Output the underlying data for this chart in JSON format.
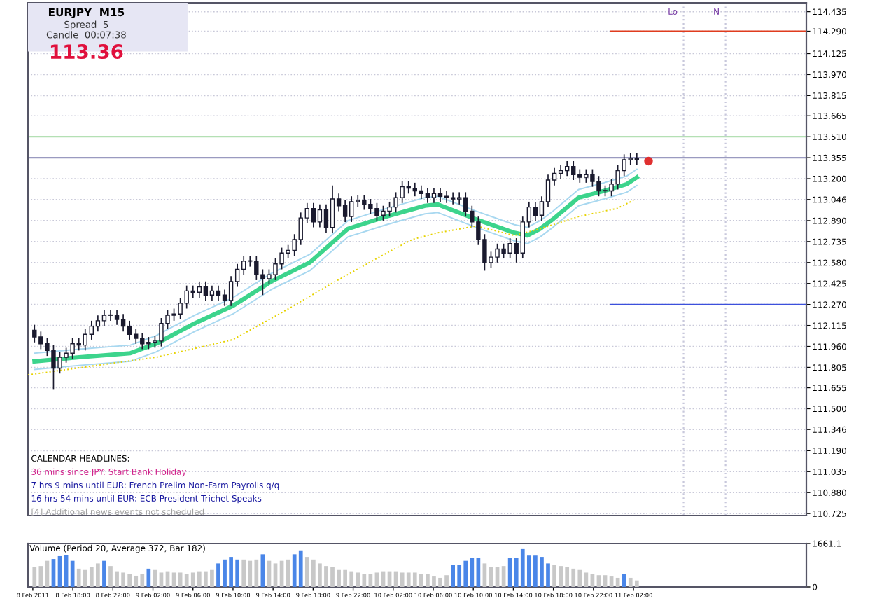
{
  "chart_data": [
    {
      "type": "candlestick",
      "x": [
        "2011-02-08T14:10",
        "2011-02-08T14:48",
        "2011-02-08T15:26",
        "2011-02-08T16:04",
        "2011-02-08T16:42",
        "2011-02-08T17:20",
        "2011-02-08T17:58",
        "2011-02-08T18:36",
        "2011-02-08T19:14",
        "2011-02-08T19:52",
        "2011-02-08T20:30",
        "2011-02-08T21:08",
        "2011-02-08T21:46",
        "2011-02-08T22:24",
        "2011-02-08T23:02",
        "2011-02-08T23:40",
        "2011-02-09T00:18",
        "2011-02-09T00:56",
        "2011-02-09T01:34",
        "2011-02-09T02:12",
        "2011-02-09T02:50",
        "2011-02-09T03:28",
        "2011-02-09T04:06",
        "2011-02-09T04:44",
        "2011-02-09T05:22",
        "2011-02-09T06:00",
        "2011-02-09T06:38",
        "2011-02-09T07:16",
        "2011-02-09T07:54",
        "2011-02-09T08:32",
        "2011-02-09T09:10",
        "2011-02-09T09:48",
        "2011-02-09T10:26",
        "2011-02-09T11:04",
        "2011-02-09T11:42",
        "2011-02-09T12:20",
        "2011-02-09T12:58",
        "2011-02-09T13:36",
        "2011-02-09T14:14",
        "2011-02-09T14:52",
        "2011-02-09T15:30",
        "2011-02-09T16:08",
        "2011-02-09T16:46",
        "2011-02-09T17:24",
        "2011-02-09T18:02",
        "2011-02-09T18:40",
        "2011-02-09T19:18",
        "2011-02-09T19:56",
        "2011-02-09T20:34",
        "2011-02-09T21:12",
        "2011-02-09T21:50",
        "2011-02-09T22:28",
        "2011-02-09T23:06",
        "2011-02-09T23:44",
        "2011-02-10T00:22",
        "2011-02-10T01:00",
        "2011-02-10T01:38",
        "2011-02-10T02:16",
        "2011-02-10T02:54",
        "2011-02-10T03:32",
        "2011-02-10T04:10",
        "2011-02-10T04:48",
        "2011-02-10T05:26",
        "2011-02-10T06:04",
        "2011-02-10T06:42",
        "2011-02-10T07:20",
        "2011-02-10T07:58",
        "2011-02-10T08:36",
        "2011-02-10T09:14",
        "2011-02-10T09:52",
        "2011-02-10T10:30",
        "2011-02-10T11:08",
        "2011-02-10T11:46",
        "2011-02-10T12:24",
        "2011-02-10T13:02",
        "2011-02-10T13:40",
        "2011-02-10T14:18",
        "2011-02-10T14:56",
        "2011-02-10T15:34",
        "2011-02-10T16:12",
        "2011-02-10T16:50",
        "2011-02-10T17:28",
        "2011-02-10T18:06",
        "2011-02-10T18:44",
        "2011-02-10T19:22",
        "2011-02-10T20:00",
        "2011-02-10T20:38",
        "2011-02-10T21:16",
        "2011-02-10T21:54",
        "2011-02-10T22:32",
        "2011-02-10T23:10",
        "2011-02-10T23:48",
        "2011-02-11T00:26",
        "2011-02-11T01:04",
        "2011-02-11T01:42",
        "2011-02-11T02:20"
      ],
      "ohlc": [
        [
          112.08,
          112.12,
          111.99,
          112.03
        ],
        [
          112.03,
          112.07,
          111.94,
          111.98
        ],
        [
          111.98,
          112.02,
          111.89,
          111.93
        ],
        [
          111.93,
          111.97,
          111.64,
          111.8
        ],
        [
          111.8,
          111.92,
          111.76,
          111.88
        ],
        [
          111.88,
          111.95,
          111.84,
          111.91
        ],
        [
          111.91,
          112.02,
          111.87,
          111.98
        ],
        [
          111.98,
          112.02,
          111.93,
          111.97
        ],
        [
          111.97,
          112.09,
          111.93,
          112.05
        ],
        [
          112.05,
          112.15,
          112.01,
          112.11
        ],
        [
          112.11,
          112.19,
          112.07,
          112.15
        ],
        [
          112.15,
          112.23,
          112.11,
          112.19
        ],
        [
          112.19,
          112.23,
          112.15,
          112.19
        ],
        [
          112.19,
          112.23,
          112.12,
          112.16
        ],
        [
          112.16,
          112.2,
          112.07,
          112.11
        ],
        [
          112.11,
          112.15,
          112.01,
          112.05
        ],
        [
          112.05,
          112.09,
          111.98,
          112.02
        ],
        [
          112.02,
          112.06,
          111.94,
          111.98
        ],
        [
          111.98,
          112.03,
          111.94,
          111.99
        ],
        [
          111.99,
          112.04,
          111.95,
          112.0
        ],
        [
          112.0,
          112.17,
          111.96,
          112.13
        ],
        [
          112.13,
          112.23,
          112.09,
          112.19
        ],
        [
          112.19,
          112.24,
          112.15,
          112.2
        ],
        [
          112.2,
          112.32,
          112.16,
          112.28
        ],
        [
          112.28,
          112.41,
          112.24,
          112.37
        ],
        [
          112.37,
          112.41,
          112.32,
          112.36
        ],
        [
          112.36,
          112.44,
          112.32,
          112.4
        ],
        [
          112.4,
          112.44,
          112.3,
          112.34
        ],
        [
          112.34,
          112.41,
          112.3,
          112.37
        ],
        [
          112.37,
          112.41,
          112.3,
          112.34
        ],
        [
          112.34,
          112.38,
          112.26,
          112.3
        ],
        [
          112.3,
          112.48,
          112.26,
          112.44
        ],
        [
          112.44,
          112.57,
          112.4,
          112.53
        ],
        [
          112.53,
          112.63,
          112.49,
          112.59
        ],
        [
          112.59,
          112.63,
          112.55,
          112.59
        ],
        [
          112.59,
          112.63,
          112.45,
          112.49
        ],
        [
          112.49,
          112.53,
          112.34,
          112.46
        ],
        [
          112.46,
          112.53,
          112.42,
          112.49
        ],
        [
          112.49,
          112.61,
          112.45,
          112.57
        ],
        [
          112.57,
          112.69,
          112.53,
          112.65
        ],
        [
          112.65,
          112.71,
          112.61,
          112.67
        ],
        [
          112.67,
          112.79,
          112.63,
          112.75
        ],
        [
          112.75,
          112.95,
          112.71,
          112.91
        ],
        [
          112.91,
          113.02,
          112.87,
          112.98
        ],
        [
          112.98,
          113.02,
          112.84,
          112.88
        ],
        [
          112.88,
          113.01,
          112.84,
          112.97
        ],
        [
          112.97,
          113.01,
          112.8,
          112.84
        ],
        [
          112.84,
          113.15,
          112.8,
          113.05
        ],
        [
          113.05,
          113.09,
          112.96,
          113.0
        ],
        [
          113.0,
          113.04,
          112.88,
          112.92
        ],
        [
          112.92,
          113.07,
          112.88,
          113.03
        ],
        [
          113.03,
          113.08,
          112.99,
          113.04
        ],
        [
          113.04,
          113.08,
          112.97,
          113.01
        ],
        [
          113.01,
          113.05,
          112.94,
          112.98
        ],
        [
          112.98,
          113.02,
          112.89,
          112.93
        ],
        [
          112.93,
          113.0,
          112.89,
          112.96
        ],
        [
          112.96,
          113.03,
          112.92,
          112.99
        ],
        [
          112.99,
          113.1,
          112.95,
          113.06
        ],
        [
          113.06,
          113.18,
          113.02,
          113.14
        ],
        [
          113.14,
          113.18,
          113.09,
          113.13
        ],
        [
          113.13,
          113.17,
          113.07,
          113.11
        ],
        [
          113.11,
          113.15,
          113.05,
          113.09
        ],
        [
          113.09,
          113.13,
          113.02,
          113.06
        ],
        [
          113.06,
          113.13,
          113.02,
          113.09
        ],
        [
          113.09,
          113.13,
          113.03,
          113.07
        ],
        [
          113.07,
          113.11,
          113.02,
          113.06
        ],
        [
          113.06,
          113.1,
          113.01,
          113.05
        ],
        [
          113.05,
          113.1,
          113.01,
          113.06
        ],
        [
          113.06,
          113.1,
          112.92,
          112.96
        ],
        [
          112.96,
          113.0,
          112.84,
          112.88
        ],
        [
          112.88,
          112.92,
          112.71,
          112.75
        ],
        [
          112.75,
          112.79,
          112.52,
          112.58
        ],
        [
          112.58,
          112.66,
          112.54,
          112.62
        ],
        [
          112.62,
          112.72,
          112.58,
          112.68
        ],
        [
          112.68,
          112.72,
          112.61,
          112.65
        ],
        [
          112.65,
          112.76,
          112.61,
          112.72
        ],
        [
          112.72,
          112.76,
          112.58,
          112.65
        ],
        [
          112.65,
          112.92,
          112.61,
          112.88
        ],
        [
          112.88,
          113.03,
          112.84,
          112.99
        ],
        [
          112.99,
          113.03,
          112.89,
          112.93
        ],
        [
          112.93,
          113.07,
          112.89,
          113.03
        ],
        [
          113.03,
          113.23,
          112.99,
          113.19
        ],
        [
          113.19,
          113.28,
          113.15,
          113.24
        ],
        [
          113.24,
          113.3,
          113.2,
          113.26
        ],
        [
          113.26,
          113.33,
          113.22,
          113.29
        ],
        [
          113.29,
          113.33,
          113.19,
          113.23
        ],
        [
          113.23,
          113.27,
          113.17,
          113.21
        ],
        [
          113.21,
          113.27,
          113.17,
          113.23
        ],
        [
          113.23,
          113.27,
          113.14,
          113.18
        ],
        [
          113.18,
          113.22,
          113.07,
          113.11
        ],
        [
          113.11,
          113.15,
          113.07,
          113.11
        ],
        [
          113.11,
          113.2,
          113.07,
          113.16
        ],
        [
          113.16,
          113.3,
          113.12,
          113.26
        ],
        [
          113.26,
          113.38,
          113.22,
          113.34
        ],
        [
          113.34,
          113.39,
          113.3,
          113.35
        ],
        [
          113.35,
          113.39,
          113.3,
          113.34
        ]
      ],
      "color": "#1a1a2e",
      "series": [
        {
          "type": "line",
          "color": "#a8d8f0",
          "x": [
            "2011-02-08T14:10",
            "2011-02-08T18:38",
            "2011-02-08T23:45",
            "2011-02-09T02:19",
            "2011-02-09T06:09",
            "2011-02-09T09:59",
            "2011-02-09T13:49",
            "2011-02-09T17:40",
            "2011-02-09T21:29",
            "2011-02-10T01:20",
            "2011-02-10T05:10",
            "2011-02-10T06:27",
            "2011-02-10T10:17",
            "2011-02-10T14:07",
            "2011-02-10T15:24",
            "2011-02-10T16:41",
            "2011-02-10T17:57",
            "2011-02-10T20:31",
            "2011-02-10T23:04",
            "2011-02-11T01:20",
            "2011-02-11T02:20"
          ],
          "values": [
            111.91,
            111.94,
            111.97,
            112.04,
            112.19,
            112.32,
            112.5,
            112.64,
            112.89,
            112.98,
            113.06,
            113.07,
            112.96,
            112.86,
            112.84,
            112.89,
            112.96,
            113.12,
            113.17,
            113.22,
            113.27
          ]
        },
        {
          "type": "line",
          "color": "#a8d8f0",
          "x": [
            "2011-02-08T14:10",
            "2011-02-08T18:38",
            "2011-02-08T23:45",
            "2011-02-09T02:19",
            "2011-02-09T06:09",
            "2011-02-09T09:59",
            "2011-02-09T13:49",
            "2011-02-09T17:40",
            "2011-02-09T21:29",
            "2011-02-10T01:20",
            "2011-02-10T05:10",
            "2011-02-10T06:27",
            "2011-02-10T10:17",
            "2011-02-10T14:07",
            "2011-02-10T15:24",
            "2011-02-10T16:41",
            "2011-02-10T17:57",
            "2011-02-10T20:31",
            "2011-02-10T23:04",
            "2011-02-11T01:20",
            "2011-02-11T02:20"
          ],
          "values": [
            111.79,
            111.82,
            111.85,
            111.92,
            112.07,
            112.2,
            112.38,
            112.52,
            112.77,
            112.86,
            112.94,
            112.95,
            112.84,
            112.74,
            112.72,
            112.77,
            112.84,
            113.0,
            113.05,
            113.1,
            113.15
          ]
        },
        {
          "type": "line",
          "color": "#3cd48c",
          "x": [
            "2011-02-08T14:10",
            "2011-02-08T18:38",
            "2011-02-08T23:45",
            "2011-02-09T02:19",
            "2011-02-09T06:09",
            "2011-02-09T09:59",
            "2011-02-09T13:49",
            "2011-02-09T17:40",
            "2011-02-09T21:29",
            "2011-02-10T01:20",
            "2011-02-10T05:10",
            "2011-02-10T06:27",
            "2011-02-10T10:17",
            "2011-02-10T14:07",
            "2011-02-10T15:24",
            "2011-02-10T16:41",
            "2011-02-10T17:57",
            "2011-02-10T20:31",
            "2011-02-10T23:04",
            "2011-02-11T01:20",
            "2011-02-11T02:20"
          ],
          "values": [
            111.85,
            111.88,
            111.91,
            111.98,
            112.13,
            112.26,
            112.44,
            112.58,
            112.83,
            112.92,
            113.0,
            113.01,
            112.9,
            112.8,
            112.78,
            112.83,
            112.9,
            113.06,
            113.11,
            113.16,
            113.21
          ]
        },
        {
          "type": "line",
          "color": "#e6d200",
          "line_style": "dotted",
          "x": [
            "2011-02-08T13:31",
            "2011-02-09T02:19",
            "2011-02-09T09:59",
            "2011-02-09T15:06",
            "2011-02-09T20:13",
            "2011-02-10T01:20",
            "2011-02-10T03:53",
            "2011-02-10T06:27",
            "2011-02-10T10:17",
            "2011-02-10T14:07",
            "2011-02-10T16:41",
            "2011-02-10T20:31",
            "2011-02-11T00:21",
            "2011-02-11T02:00"
          ],
          "values": [
            111.75,
            111.88,
            112.01,
            112.22,
            112.44,
            112.65,
            112.75,
            112.8,
            112.85,
            112.78,
            112.83,
            112.92,
            112.98,
            113.04
          ]
        },
        {
          "type": "line",
          "color": "#e03c1e",
          "x": [
            "2011-02-10T23:45",
            "2011-02-11T19:16"
          ],
          "values": [
            114.29,
            114.29
          ]
        },
        {
          "type": "line",
          "color": "#3c50dc",
          "x": [
            "2011-02-10T23:45",
            "2011-02-11T19:16"
          ],
          "values": [
            112.27,
            112.27
          ]
        },
        {
          "type": "scatter",
          "color": "#e03030",
          "x": [
            "2011-02-11T03:30"
          ],
          "values": [
            113.33
          ]
        }
      ],
      "xlim": [
        "2011-02-08T13:31",
        "2011-02-11T19:16"
      ],
      "ylim": [
        110.71,
        114.5
      ],
      "yticks": [
        {
          "value": 114.435,
          "label": "114.435"
        },
        {
          "value": 114.29,
          "label": "114.290"
        },
        114.125,
        {
          "value": 113.97,
          "label": "113.970"
        },
        113.815,
        113.665,
        {
          "value": 113.51,
          "label": "113.510"
        },
        113.355,
        {
          "value": 113.2,
          "label": "113.200"
        },
        113.046,
        {
          "value": 112.89,
          "label": "112.890"
        },
        112.735,
        {
          "value": 112.58,
          "label": "112.580"
        },
        112.425,
        {
          "value": 112.27,
          "label": "112.270"
        },
        112.115,
        {
          "value": 111.96,
          "label": "111.960"
        },
        111.805,
        111.655,
        {
          "value": 111.5,
          "label": "111.500"
        },
        111.346,
        {
          "value": 111.19,
          "label": "111.190"
        },
        111.035,
        {
          "value": 110.88,
          "label": "110.880"
        },
        110.725
      ],
      "tick_labels": "y",
      "grid": "y",
      "ref_lines": [
        {
          "axis": "y",
          "value": 113.51,
          "color": "#b4e0b4"
        },
        {
          "axis": "y",
          "value": 113.355,
          "color": "#9a9ac0"
        },
        {
          "axis": "x",
          "value": "2011-02-11T07:00",
          "label": "Lo",
          "color": "#c8c8dc",
          "line_style": "dotted"
        },
        {
          "axis": "x",
          "value": "2011-02-11T11:12",
          "label": "N",
          "color": "#c8c8dc",
          "line_style": "dotted"
        }
      ],
      "annotations": [
        "EURJPY  M15",
        "Spread  5",
        "Candle  00:07:38",
        "113.36",
        "CALENDAR HEADLINES:",
        "36 mins since JPY: Start Bank Holiday",
        "7 hrs 9 mins until EUR: French Prelim Non-Farm Payrolls q/q",
        "16 hrs 54 mins until EUR: ECB President Trichet Speaks",
        "[4] Additional news events not scheduled"
      ]
    },
    {
      "type": "bar",
      "title": "Volume (Period 20, Average 372, Bar 182)",
      "x": [
        "2011-02-08T14:10",
        "2011-02-08T14:48",
        "2011-02-08T15:26",
        "2011-02-08T16:04",
        "2011-02-08T16:42",
        "2011-02-08T17:20",
        "2011-02-08T17:58",
        "2011-02-08T18:36",
        "2011-02-08T19:14",
        "2011-02-08T19:52",
        "2011-02-08T20:30",
        "2011-02-08T21:08",
        "2011-02-08T21:46",
        "2011-02-08T22:24",
        "2011-02-08T23:02",
        "2011-02-08T23:40",
        "2011-02-09T00:18",
        "2011-02-09T00:56",
        "2011-02-09T01:34",
        "2011-02-09T02:12",
        "2011-02-09T02:50",
        "2011-02-09T03:28",
        "2011-02-09T04:06",
        "2011-02-09T04:44",
        "2011-02-09T05:22",
        "2011-02-09T06:00",
        "2011-02-09T06:38",
        "2011-02-09T07:16",
        "2011-02-09T07:54",
        "2011-02-09T08:32",
        "2011-02-09T09:10",
        "2011-02-09T09:48",
        "2011-02-09T10:26",
        "2011-02-09T11:04",
        "2011-02-09T11:42",
        "2011-02-09T12:20",
        "2011-02-09T12:58",
        "2011-02-09T13:36",
        "2011-02-09T14:14",
        "2011-02-09T14:52",
        "2011-02-09T15:30",
        "2011-02-09T16:08",
        "2011-02-09T16:46",
        "2011-02-09T17:24",
        "2011-02-09T18:02",
        "2011-02-09T18:40",
        "2011-02-09T19:18",
        "2011-02-09T19:56",
        "2011-02-09T20:34",
        "2011-02-09T21:12",
        "2011-02-09T21:50",
        "2011-02-09T22:28",
        "2011-02-09T23:06",
        "2011-02-09T23:44",
        "2011-02-10T00:22",
        "2011-02-10T01:00",
        "2011-02-10T01:38",
        "2011-02-10T02:16",
        "2011-02-10T02:54",
        "2011-02-10T03:32",
        "2011-02-10T04:10",
        "2011-02-10T04:48",
        "2011-02-10T05:26",
        "2011-02-10T06:04",
        "2011-02-10T06:42",
        "2011-02-10T07:20",
        "2011-02-10T07:58",
        "2011-02-10T08:36",
        "2011-02-10T09:14",
        "2011-02-10T09:52",
        "2011-02-10T10:30",
        "2011-02-10T11:08",
        "2011-02-10T11:46",
        "2011-02-10T12:24",
        "2011-02-10T13:02",
        "2011-02-10T13:40",
        "2011-02-10T14:18",
        "2011-02-10T14:56",
        "2011-02-10T15:34",
        "2011-02-10T16:12",
        "2011-02-10T16:50",
        "2011-02-10T17:28",
        "2011-02-10T18:06",
        "2011-02-10T18:44",
        "2011-02-10T19:22",
        "2011-02-10T20:00",
        "2011-02-10T20:38",
        "2011-02-10T21:16",
        "2011-02-10T21:54",
        "2011-02-10T22:32",
        "2011-02-10T23:10",
        "2011-02-10T23:48",
        "2011-02-11T00:26",
        "2011-02-11T01:04",
        "2011-02-11T01:42",
        "2011-02-11T02:20"
      ],
      "values": [
        750,
        800,
        1000,
        1070,
        1180,
        1230,
        1000,
        700,
        650,
        750,
        900,
        1000,
        800,
        600,
        550,
        500,
        430,
        500,
        700,
        650,
        550,
        600,
        550,
        550,
        500,
        550,
        600,
        600,
        650,
        900,
        1050,
        1150,
        1050,
        1050,
        1000,
        1050,
        1250,
        1000,
        900,
        1000,
        1050,
        1250,
        1400,
        1150,
        1050,
        900,
        800,
        750,
        650,
        650,
        600,
        550,
        500,
        500,
        550,
        600,
        600,
        600,
        550,
        550,
        550,
        500,
        500,
        400,
        350,
        450,
        850,
        850,
        1000,
        1100,
        1100,
        900,
        750,
        750,
        800,
        1100,
        1100,
        1450,
        1200,
        1200,
        1150,
        900,
        850,
        800,
        750,
        700,
        650,
        550,
        500,
        450,
        450,
        400,
        350,
        500,
        350,
        250
      ],
      "colors": [
        "#c8c8c8",
        "#c8c8c8",
        "#c8c8c8",
        "#4a86e8",
        "#4a86e8",
        "#4a86e8",
        "#4a86e8",
        "#c8c8c8",
        "#c8c8c8",
        "#c8c8c8",
        "#c8c8c8",
        "#4a86e8",
        "#c8c8c8",
        "#c8c8c8",
        "#c8c8c8",
        "#c8c8c8",
        "#c8c8c8",
        "#c8c8c8",
        "#4a86e8",
        "#c8c8c8",
        "#c8c8c8",
        "#c8c8c8",
        "#c8c8c8",
        "#c8c8c8",
        "#c8c8c8",
        "#c8c8c8",
        "#c8c8c8",
        "#c8c8c8",
        "#c8c8c8",
        "#4a86e8",
        "#4a86e8",
        "#4a86e8",
        "#4a86e8",
        "#c8c8c8",
        "#c8c8c8",
        "#c8c8c8",
        "#4a86e8",
        "#c8c8c8",
        "#c8c8c8",
        "#c8c8c8",
        "#c8c8c8",
        "#4a86e8",
        "#4a86e8",
        "#c8c8c8",
        "#c8c8c8",
        "#c8c8c8",
        "#c8c8c8",
        "#c8c8c8",
        "#c8c8c8",
        "#c8c8c8",
        "#c8c8c8",
        "#c8c8c8",
        "#c8c8c8",
        "#c8c8c8",
        "#c8c8c8",
        "#c8c8c8",
        "#c8c8c8",
        "#c8c8c8",
        "#c8c8c8",
        "#c8c8c8",
        "#c8c8c8",
        "#c8c8c8",
        "#c8c8c8",
        "#c8c8c8",
        "#c8c8c8",
        "#c8c8c8",
        "#4a86e8",
        "#4a86e8",
        "#4a86e8",
        "#4a86e8",
        "#4a86e8",
        "#c8c8c8",
        "#c8c8c8",
        "#c8c8c8",
        "#c8c8c8",
        "#4a86e8",
        "#4a86e8",
        "#4a86e8",
        "#4a86e8",
        "#4a86e8",
        "#4a86e8",
        "#4a86e8",
        "#c8c8c8",
        "#c8c8c8",
        "#c8c8c8",
        "#c8c8c8",
        "#c8c8c8",
        "#c8c8c8",
        "#c8c8c8",
        "#c8c8c8",
        "#c8c8c8",
        "#c8c8c8",
        "#c8c8c8",
        "#4a86e8",
        "#c8c8c8",
        "#c8c8c8"
      ],
      "xlim": [
        "2011-02-08T13:31",
        "2011-02-11T19:16"
      ],
      "ylim": [
        0,
        1661.1
      ],
      "yticks": [
        0,
        1661.1
      ],
      "xticks": [
        {
          "value": "2011-02-08T14:00",
          "label": "8 Feb 2011"
        },
        {
          "value": "2011-02-08T18:00",
          "label": "8 Feb 18:00"
        },
        {
          "value": "2011-02-08T22:00",
          "label": "8 Feb 22:00"
        },
        {
          "value": "2011-02-09T02:00",
          "label": "9 Feb 02:00"
        },
        {
          "value": "2011-02-09T06:00",
          "label": "9 Feb 06:00"
        },
        {
          "value": "2011-02-09T10:00",
          "label": "9 Feb 10:00"
        },
        {
          "value": "2011-02-09T14:00",
          "label": "9 Feb 14:00"
        },
        {
          "value": "2011-02-09T18:00",
          "label": "9 Feb 18:00"
        },
        {
          "value": "2011-02-09T22:00",
          "label": "9 Feb 22:00"
        },
        {
          "value": "2011-02-10T02:00",
          "label": "10 Feb 02:00"
        },
        {
          "value": "2011-02-10T06:00",
          "label": "10 Feb 06:00"
        },
        {
          "value": "2011-02-10T10:00",
          "label": "10 Feb 10:00"
        },
        {
          "value": "2011-02-10T14:00",
          "label": "10 Feb 14:00"
        },
        {
          "value": "2011-02-10T18:00",
          "label": "10 Feb 18:00"
        },
        {
          "value": "2011-02-10T22:00",
          "label": "10 Feb 22:00"
        },
        {
          "value": "2011-02-11T02:00",
          "label": "11 Feb 02:00"
        }
      ]
    }
  ]
}
